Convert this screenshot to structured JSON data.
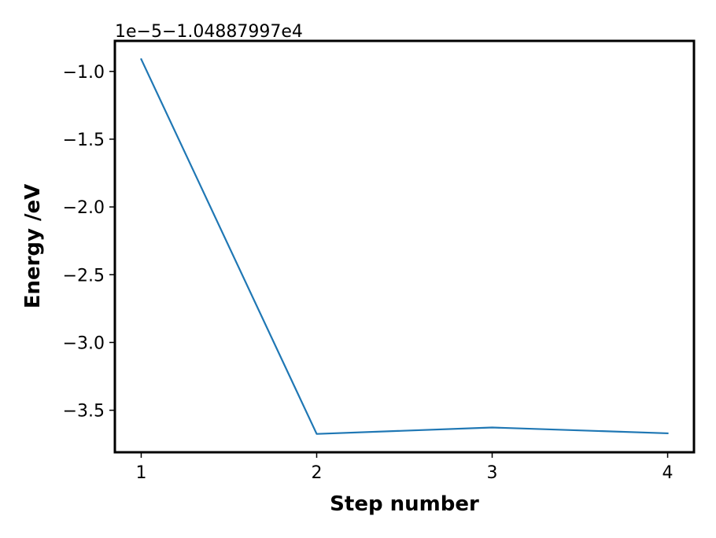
{
  "chart_data": {
    "type": "line",
    "title": "",
    "xlabel": "Step number",
    "ylabel": "Energy /eV",
    "offset_text": "1e−5−1.04887997e4",
    "x": [
      1,
      2,
      3,
      4
    ],
    "series": [
      {
        "name": "Energy",
        "color": "#1f77b4",
        "values": [
          -0.91,
          -3.675,
          -3.627,
          -3.67
        ]
      }
    ],
    "xlim": [
      0.85,
      4.15
    ],
    "ylim": [
      -3.81,
      -0.775
    ],
    "xticks": [
      {
        "value": 1,
        "label": "1"
      },
      {
        "value": 2,
        "label": "2"
      },
      {
        "value": 3,
        "label": "3"
      },
      {
        "value": 4,
        "label": "4"
      }
    ],
    "yticks": [
      {
        "value": -1.0,
        "label": "−1.0"
      },
      {
        "value": -1.5,
        "label": "−1.5"
      },
      {
        "value": -2.0,
        "label": "−2.0"
      },
      {
        "value": -2.5,
        "label": "−2.5"
      },
      {
        "value": -3.0,
        "label": "−3.0"
      },
      {
        "value": -3.5,
        "label": "−3.5"
      }
    ],
    "grid": false,
    "legend": "none"
  }
}
